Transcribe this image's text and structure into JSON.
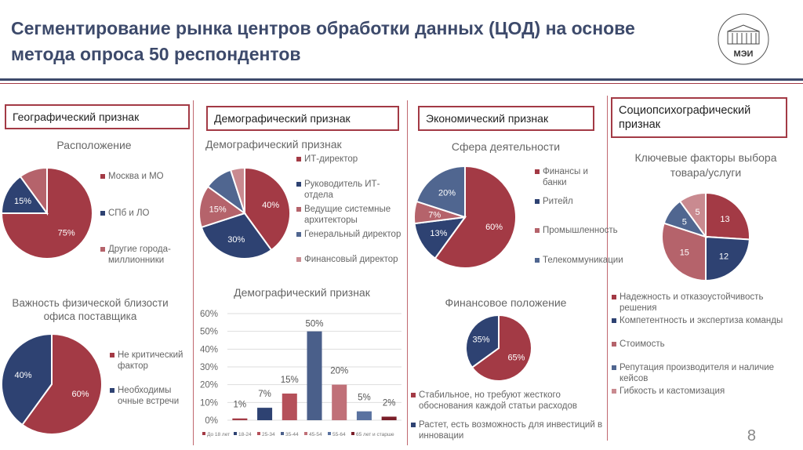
{
  "title": "Сегментирование рынка центров обработки данных (ЦОД) на основе метода опроса 50 респондентов",
  "logo_text": "МЭИ",
  "page_number": "8",
  "colors": {
    "red": "#a33a45",
    "navy": "#2e4272",
    "pink": "#b5636b",
    "slate": "#506690",
    "light": "#c98a90",
    "dark": "#7a1e28"
  },
  "sections": {
    "geo": "Географический признак",
    "demo": "Демографический признак",
    "econ": "Экономический признак",
    "psy": "Социопсихографический признак"
  },
  "charts": {
    "location": {
      "title": "Расположение",
      "values": [
        75,
        15,
        10
      ],
      "labels": [
        "75%",
        "15%",
        ""
      ],
      "colors": [
        "#a33a45",
        "#2e4272",
        "#b5636b"
      ],
      "legend": [
        "Москва и МО",
        "СПб и ЛО",
        "Другие города-миллионники"
      ]
    },
    "proximity": {
      "title": "Важность физической близости офиса поставщика",
      "values": [
        60,
        40
      ],
      "labels": [
        "60%",
        "40%"
      ],
      "colors": [
        "#a33a45",
        "#2e4272"
      ],
      "legend": [
        "Не критический фактор",
        "Необходимы очные встречи"
      ]
    },
    "demo_pie": {
      "title": "Демографический признак",
      "values": [
        40,
        30,
        15,
        10,
        5
      ],
      "labels": [
        "40%",
        "30%",
        "15%",
        "",
        ""
      ],
      "colors": [
        "#a33a45",
        "#2e4272",
        "#b5636b",
        "#506690",
        "#c98a90"
      ],
      "legend": [
        "ИТ-директор",
        "Руководитель ИТ-отдела",
        "Ведущие системные архитекторы",
        "Генеральный директор",
        "Финансовый директор"
      ]
    },
    "sphere": {
      "title": "Сфера деятельности",
      "values": [
        60,
        13,
        7,
        20
      ],
      "labels": [
        "60%",
        "13%",
        "7%",
        "20%"
      ],
      "colors": [
        "#a33a45",
        "#2e4272",
        "#b5636b",
        "#506690"
      ],
      "legend": [
        "Финансы и банки",
        "Ритейл",
        "Промышленность",
        "Телекоммуникации"
      ]
    },
    "finance": {
      "title": "Финансовое положение",
      "values": [
        65,
        35
      ],
      "labels": [
        "65%",
        "35%"
      ],
      "colors": [
        "#a33a45",
        "#2e4272"
      ],
      "legend": [
        "Стабильное, но требуют жесткого обоснования каждой статьи расходов",
        "Растет, есть возможность для инвестиций в инновации"
      ]
    },
    "factors": {
      "title": "Ключевые факторы выбора товара/услуги",
      "values": [
        13,
        12,
        15,
        5,
        5
      ],
      "labels": [
        "13",
        "12",
        "15",
        "5",
        "5"
      ],
      "colors": [
        "#a33a45",
        "#2e4272",
        "#b5636b",
        "#506690",
        "#c98a90"
      ],
      "legend": [
        "Надежность и отказоустойчивость решения",
        "Компетентность и экспертиза команды",
        "Стоимость",
        "Репутация производителя и наличие кейсов",
        "Гибкость и кастомизация"
      ]
    }
  },
  "chart_data": {
    "type": "bar",
    "title": "Демографический признак",
    "categories": [
      "До 18 лет",
      "18-24",
      "25-34",
      "35-44",
      "45-54",
      "55-64",
      "65 лет и старше"
    ],
    "values": [
      1,
      7,
      15,
      50,
      20,
      5,
      2
    ],
    "data_labels": [
      "1%",
      "7%",
      "15%",
      "50%",
      "20%",
      "5%",
      "2%"
    ],
    "colors": [
      "#a33a45",
      "#2e4272",
      "#b5505a",
      "#4a5f8a",
      "#c07078",
      "#5a72a0",
      "#7a1e28"
    ],
    "ylim": [
      0,
      60
    ],
    "yticks": [
      "0%",
      "10%",
      "20%",
      "30%",
      "40%",
      "50%",
      "60%"
    ],
    "grid": true,
    "legend": "bottom"
  }
}
